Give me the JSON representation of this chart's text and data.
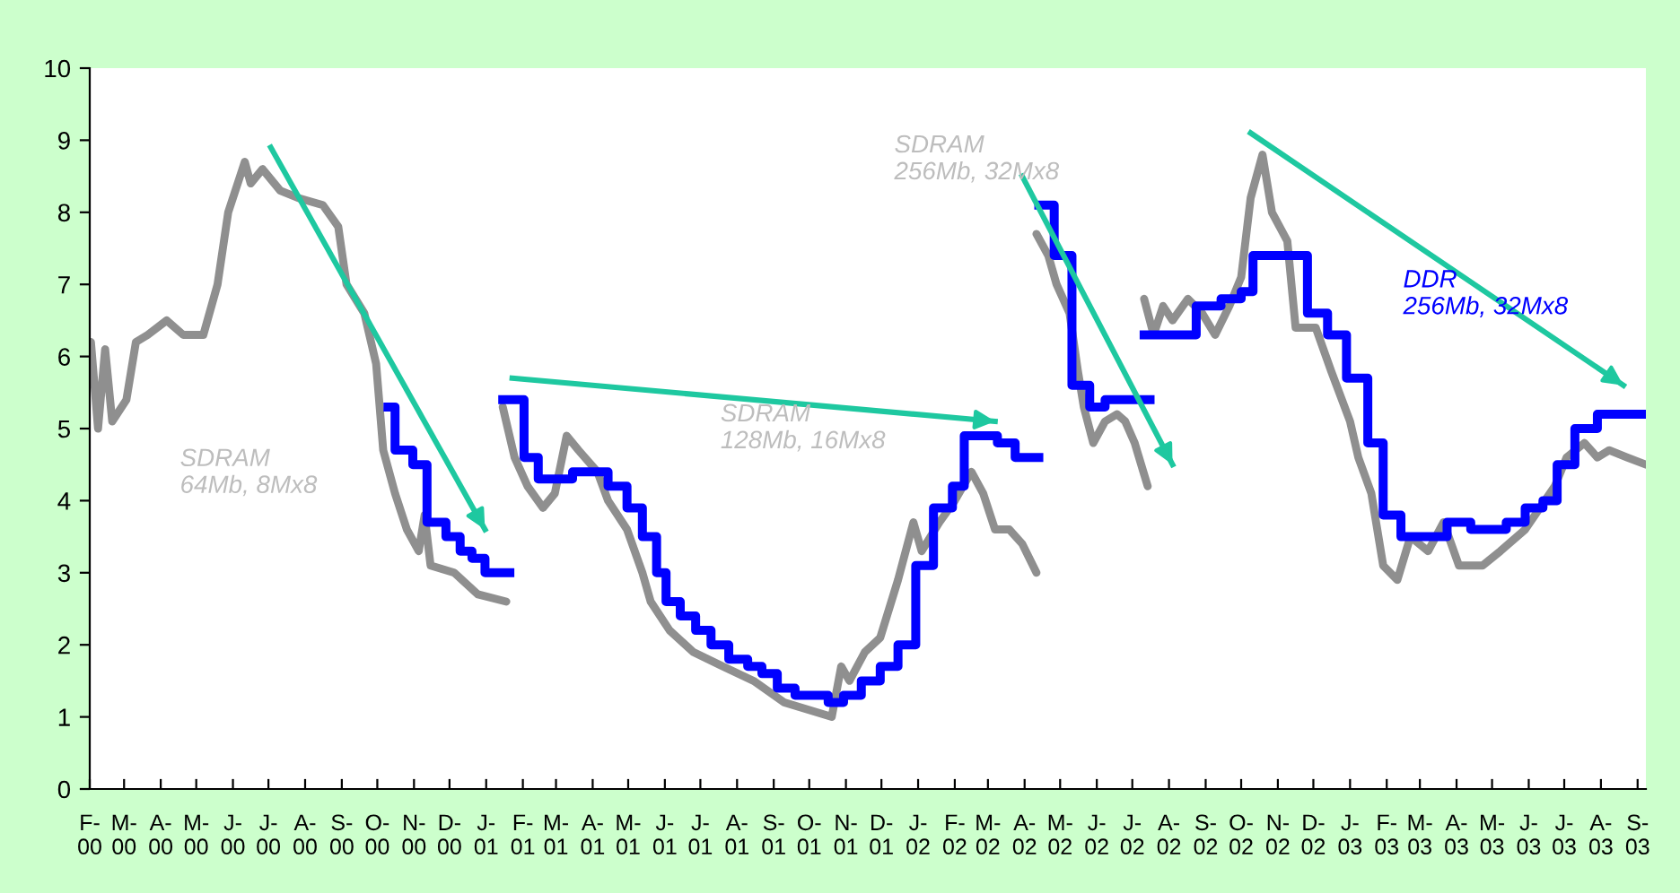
{
  "chart_data": {
    "type": "line",
    "xlim": [
      "2000-02-01",
      "2003-09-08"
    ],
    "xticks": [
      {
        "value": "2000-02-01",
        "label": "F-\n00"
      },
      {
        "value": "2000-03-01",
        "label": "M-\n00"
      },
      {
        "value": "2000-04-01",
        "label": "A-\n00"
      },
      {
        "value": "2000-05-01",
        "label": "M-\n00"
      },
      {
        "value": "2000-06-01",
        "label": "J-\n00"
      },
      {
        "value": "2000-07-01",
        "label": "J-\n00"
      },
      {
        "value": "2000-08-01",
        "label": "A-\n00"
      },
      {
        "value": "2000-09-01",
        "label": "S-\n00"
      },
      {
        "value": "2000-10-01",
        "label": "O-\n00"
      },
      {
        "value": "2000-11-01",
        "label": "N-\n00"
      },
      {
        "value": "2000-12-01",
        "label": "D-\n00"
      },
      {
        "value": "2001-01-01",
        "label": "J-\n01"
      },
      {
        "value": "2001-02-01",
        "label": "F-\n01"
      },
      {
        "value": "2001-03-01",
        "label": "M-\n01"
      },
      {
        "value": "2001-04-01",
        "label": "A-\n01"
      },
      {
        "value": "2001-05-01",
        "label": "M-\n01"
      },
      {
        "value": "2001-06-01",
        "label": "J-\n01"
      },
      {
        "value": "2001-07-01",
        "label": "J-\n01"
      },
      {
        "value": "2001-08-01",
        "label": "A-\n01"
      },
      {
        "value": "2001-09-01",
        "label": "S-\n01"
      },
      {
        "value": "2001-10-01",
        "label": "O-\n01"
      },
      {
        "value": "2001-11-01",
        "label": "N-\n01"
      },
      {
        "value": "2001-12-01",
        "label": "D-\n01"
      },
      {
        "value": "2002-01-01",
        "label": "J-\n02"
      },
      {
        "value": "2002-02-01",
        "label": "F-\n02"
      },
      {
        "value": "2002-03-01",
        "label": "M-\n02"
      },
      {
        "value": "2002-04-01",
        "label": "A-\n02"
      },
      {
        "value": "2002-05-01",
        "label": "M-\n02"
      },
      {
        "value": "2002-06-01",
        "label": "J-\n02"
      },
      {
        "value": "2002-07-01",
        "label": "J-\n02"
      },
      {
        "value": "2002-08-01",
        "label": "A-\n02"
      },
      {
        "value": "2002-09-01",
        "label": "S-\n02"
      },
      {
        "value": "2002-10-01",
        "label": "O-\n02"
      },
      {
        "value": "2002-11-01",
        "label": "N-\n02"
      },
      {
        "value": "2002-12-01",
        "label": "D-\n02"
      },
      {
        "value": "2003-01-01",
        "label": "J-\n03"
      },
      {
        "value": "2003-02-01",
        "label": "F-\n03"
      },
      {
        "value": "2003-03-01",
        "label": "M-\n03"
      },
      {
        "value": "2003-04-01",
        "label": "A-\n03"
      },
      {
        "value": "2003-05-01",
        "label": "M-\n03"
      },
      {
        "value": "2003-06-01",
        "label": "J-\n03"
      },
      {
        "value": "2003-07-01",
        "label": "J-\n03"
      },
      {
        "value": "2003-08-01",
        "label": "A-\n03"
      },
      {
        "value": "2003-09-01",
        "label": "S-\n03"
      }
    ],
    "ylim": [
      0,
      10
    ],
    "yticks": [
      0,
      1,
      2,
      3,
      4,
      5,
      6,
      7,
      8,
      9,
      10
    ],
    "series": [
      {
        "color": "#8f8f8f",
        "x": [
          "2000-02-02",
          "2000-02-08",
          "2000-02-14",
          "2000-02-20",
          "2000-03-03",
          "2000-03-11",
          "2000-03-21",
          "2000-04-06",
          "2000-04-20",
          "2000-05-07",
          "2000-05-19",
          "2000-05-28",
          "2000-06-11",
          "2000-06-16",
          "2000-06-26",
          "2000-07-11",
          "2000-07-26",
          "2000-08-16",
          "2000-08-29",
          "2000-09-05",
          "2000-09-20",
          "2000-09-30",
          "2000-10-06",
          "2000-10-16",
          "2000-10-26",
          "2000-11-05",
          "2000-11-10",
          "2000-11-15",
          "2000-12-05",
          "2000-12-25",
          "2001-01-18"
        ],
        "values": [
          6.2,
          5.0,
          6.1,
          5.1,
          5.4,
          6.2,
          6.3,
          6.5,
          6.3,
          6.3,
          7.0,
          8.0,
          8.7,
          8.4,
          8.6,
          8.3,
          8.2,
          8.1,
          7.8,
          7.0,
          6.6,
          5.9,
          4.7,
          4.1,
          3.6,
          3.3,
          3.8,
          3.1,
          3.0,
          2.7,
          2.6
        ]
      },
      {
        "type": "step",
        "color": "#0000ff",
        "x": [
          "2000-10-10",
          "2000-10-16",
          "2000-10-31",
          "2000-11-12",
          "2000-11-28",
          "2000-12-10",
          "2000-12-20",
          "2000-12-31",
          "2001-01-21"
        ],
        "values": [
          5.3,
          4.7,
          4.5,
          3.7,
          3.5,
          3.3,
          3.2,
          3.0,
          3.0
        ]
      },
      {
        "color": "#8f8f8f",
        "x": [
          "2001-01-15",
          "2001-01-25",
          "2001-02-05",
          "2001-02-18",
          "2001-02-28",
          "2001-03-10",
          "2001-03-20",
          "2001-04-05",
          "2001-04-14",
          "2001-04-30",
          "2001-05-13",
          "2001-05-20",
          "2001-06-05",
          "2001-06-25",
          "2001-07-20",
          "2001-08-15",
          "2001-09-10",
          "2001-09-30",
          "2001-10-20",
          "2001-10-28",
          "2001-11-04",
          "2001-11-17",
          "2001-11-30",
          "2001-12-15",
          "2001-12-28",
          "2002-01-04",
          "2002-01-19",
          "2002-02-01",
          "2002-02-15",
          "2002-02-25",
          "2002-03-07",
          "2002-03-19",
          "2002-03-30",
          "2002-04-11"
        ],
        "values": [
          5.3,
          4.6,
          4.2,
          3.9,
          4.1,
          4.9,
          4.7,
          4.4,
          4.0,
          3.6,
          3.0,
          2.6,
          2.2,
          1.9,
          1.7,
          1.5,
          1.2,
          1.1,
          1.0,
          1.7,
          1.5,
          1.9,
          2.1,
          2.9,
          3.7,
          3.3,
          3.7,
          4.0,
          4.4,
          4.1,
          3.6,
          3.6,
          3.4,
          3.0
        ]
      },
      {
        "type": "step",
        "color": "#0000ff",
        "x": [
          "2001-01-15",
          "2001-02-02",
          "2001-02-14",
          "2001-03-15",
          "2001-04-14",
          "2001-04-30",
          "2001-05-13",
          "2001-05-25",
          "2001-06-02",
          "2001-06-14",
          "2001-06-27",
          "2001-07-10",
          "2001-07-25",
          "2001-08-10",
          "2001-08-22",
          "2001-09-04",
          "2001-09-19",
          "2001-10-01",
          "2001-10-17",
          "2001-10-30",
          "2001-11-14",
          "2001-11-30",
          "2001-12-15",
          "2001-12-30",
          "2002-01-14",
          "2002-01-30",
          "2002-02-09",
          "2002-03-09",
          "2002-03-24",
          "2002-04-13"
        ],
        "values": [
          5.4,
          4.6,
          4.3,
          4.4,
          4.2,
          3.9,
          3.5,
          3.0,
          2.6,
          2.4,
          2.2,
          2.0,
          1.8,
          1.7,
          1.6,
          1.4,
          1.3,
          1.3,
          1.2,
          1.3,
          1.5,
          1.7,
          2.0,
          3.1,
          3.9,
          4.2,
          4.9,
          4.8,
          4.6,
          4.6
        ]
      },
      {
        "color": "#8f8f8f",
        "x": [
          "2002-04-11",
          "2002-04-21",
          "2002-04-28",
          "2002-05-09",
          "2002-05-16",
          "2002-05-21",
          "2002-05-29",
          "2002-06-08",
          "2002-06-18",
          "2002-06-25",
          "2002-07-03",
          "2002-07-14"
        ],
        "values": [
          7.7,
          7.4,
          7.0,
          6.6,
          5.8,
          5.3,
          4.8,
          5.1,
          5.2,
          5.1,
          4.8,
          4.2
        ]
      },
      {
        "type": "step",
        "color": "#0000ff",
        "x": [
          "2002-04-13",
          "2002-04-26",
          "2002-05-11",
          "2002-05-26",
          "2002-06-08",
          "2002-07-16"
        ],
        "values": [
          8.1,
          7.4,
          5.6,
          5.3,
          5.4,
          5.4
        ]
      },
      {
        "color": "#8f8f8f",
        "x": [
          "2002-07-11",
          "2002-07-19",
          "2002-07-27",
          "2002-08-04",
          "2002-08-17",
          "2002-08-29",
          "2002-09-09",
          "2002-09-21",
          "2002-10-01",
          "2002-10-09",
          "2002-10-19",
          "2002-10-27",
          "2002-11-09",
          "2002-11-16",
          "2002-12-03",
          "2002-12-16",
          "2003-01-01",
          "2003-01-08",
          "2003-01-19",
          "2003-01-29",
          "2003-02-10",
          "2003-02-21",
          "2003-03-08",
          "2003-03-21",
          "2003-04-03",
          "2003-04-23",
          "2003-05-08",
          "2003-05-29",
          "2003-06-23",
          "2003-07-03",
          "2003-07-18",
          "2003-07-29",
          "2003-08-08",
          "2003-08-23",
          "2003-09-08"
        ],
        "values": [
          6.8,
          6.3,
          6.7,
          6.5,
          6.8,
          6.6,
          6.3,
          6.7,
          7.1,
          8.2,
          8.8,
          8.0,
          7.6,
          6.4,
          6.4,
          5.8,
          5.1,
          4.6,
          4.1,
          3.1,
          2.9,
          3.5,
          3.3,
          3.7,
          3.1,
          3.1,
          3.3,
          3.6,
          4.2,
          4.6,
          4.8,
          4.6,
          4.7,
          4.6,
          4.5
        ]
      },
      {
        "type": "step",
        "color": "#0000ff",
        "x": [
          "2002-07-11",
          "2002-08-24",
          "2002-09-14",
          "2002-10-01",
          "2002-10-11",
          "2002-11-26",
          "2002-12-13",
          "2002-12-29",
          "2003-01-16",
          "2003-01-29",
          "2003-02-13",
          "2003-03-24",
          "2003-04-13",
          "2003-05-13",
          "2003-05-29",
          "2003-06-13",
          "2003-06-25",
          "2003-07-10",
          "2003-07-29",
          "2003-09-07"
        ],
        "values": [
          6.3,
          6.7,
          6.8,
          6.9,
          7.4,
          6.6,
          6.3,
          5.7,
          4.8,
          3.8,
          3.5,
          3.7,
          3.6,
          3.7,
          3.9,
          4.0,
          4.5,
          5.0,
          5.2,
          5.2
        ]
      },
      {
        "color": "#1ec8a0",
        "x": [
          "2000-07-03",
          "2000-12-31"
        ],
        "values": [
          8.9,
          3.6
        ]
      },
      {
        "color": "#1ec8a0",
        "x": [
          "2001-01-23",
          "2002-03-07"
        ],
        "values": [
          5.7,
          5.1
        ]
      },
      {
        "color": "#1ec8a0",
        "x": [
          "2002-03-30",
          "2002-08-04"
        ],
        "values": [
          8.5,
          4.5
        ]
      },
      {
        "color": "#1ec8a0",
        "x": [
          "2002-10-09",
          "2003-08-20"
        ],
        "values": [
          9.1,
          5.6
        ]
      }
    ],
    "annotations": [
      "SDRAM\n64Mb, 8Mx8",
      {
        "text": "SDRAM\n128Mb, 16Mx8",
        "x": "2001-07-18",
        "y": 5.35
      },
      "SDRAM\n256Mb, 32Mx8",
      "DDR\n256Mb, 32Mx8"
    ]
  }
}
